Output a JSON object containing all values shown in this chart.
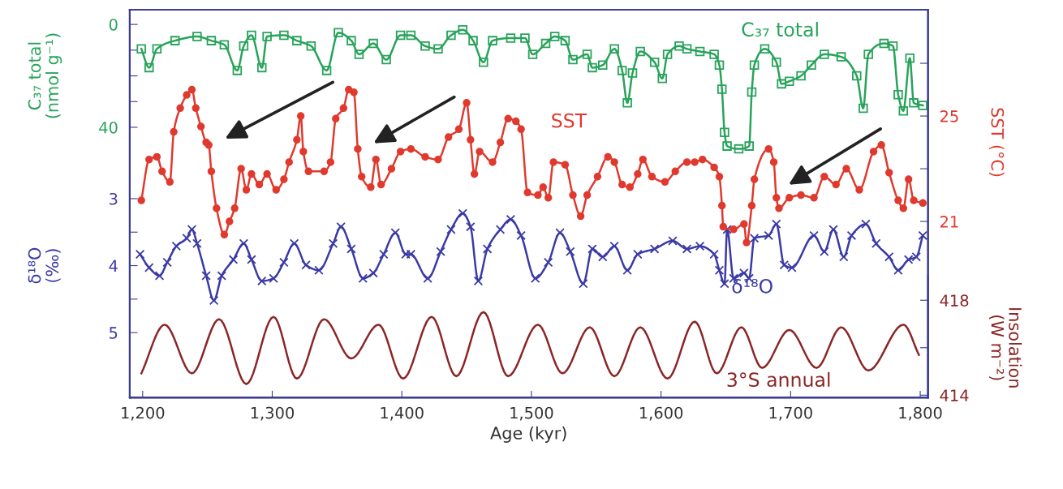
{
  "chart_data": [
    {
      "type": "line",
      "xlabel": "Age (kyr)",
      "ylabel": "δ¹⁸O\n(‰)",
      "y2label": "SST (°C)",
      "y3label": "C₃₇ total\n(nmol g⁻¹)",
      "xlim": [
        1190,
        1806
      ],
      "xticks": [
        {
          "value": 1200,
          "label": "1,200"
        },
        {
          "value": 1300,
          "label": "1,300"
        },
        {
          "value": 1400,
          "label": "1,400"
        },
        {
          "value": 1500,
          "label": "1,500"
        },
        {
          "value": 1600,
          "label": "1,600"
        },
        {
          "value": 1700,
          "label": "1,700"
        },
        {
          "value": 1800,
          "label": "1,800"
        }
      ],
      "ylim": [
        5.97,
        0.18
      ],
      "yticks": [
        3,
        {
          "value": 3.5,
          "label": null
        },
        4,
        {
          "value": 4.5,
          "label": null
        },
        5
      ],
      "y2lim": [
        14.32,
        29.03
      ],
      "y2ticks": [
        {
          "value": 27,
          "label": null
        },
        25,
        {
          "value": 23,
          "label": null
        },
        21
      ],
      "y3lim": [
        145.1,
        -5.7
      ],
      "y3ticks": [
        0,
        {
          "value": 10,
          "label": null
        },
        {
          "value": 20,
          "label": null
        },
        {
          "value": 30,
          "label": null
        },
        40
      ],
      "series": [
        {
          "name": "C₃₇ total",
          "axis": "y3",
          "color": "#27a35a",
          "marker": "square",
          "x": [
            1199,
            1205,
            1211,
            1225,
            1242,
            1253,
            1263,
            1273,
            1278,
            1284,
            1292,
            1296,
            1309,
            1319,
            1330,
            1342,
            1351,
            1361,
            1367,
            1378,
            1388,
            1399,
            1407,
            1418,
            1428,
            1438,
            1447,
            1455,
            1463,
            1470,
            1484,
            1495,
            1501,
            1511,
            1518,
            1526,
            1532,
            1543,
            1547,
            1555,
            1564,
            1570,
            1574,
            1578,
            1584,
            1595,
            1601,
            1605,
            1614,
            1620,
            1630,
            1641,
            1645,
            1647,
            1649,
            1651,
            1660,
            1668,
            1670,
            1672,
            1680,
            1689,
            1693,
            1699,
            1708,
            1716,
            1726,
            1739,
            1751,
            1756,
            1760,
            1772,
            1779,
            1783,
            1787,
            1792,
            1795,
            1802
          ],
          "values": [
            9.5,
            16.8,
            9.5,
            6.3,
            4.7,
            6.3,
            7.9,
            17.9,
            8.4,
            4.2,
            16.8,
            4.7,
            4.2,
            6.3,
            8.4,
            17.9,
            3.2,
            6.3,
            11.6,
            7.4,
            13.7,
            4.2,
            4.2,
            8.4,
            9.5,
            4.2,
            2.1,
            6.3,
            14.7,
            6.3,
            5.3,
            5.3,
            11.6,
            7.4,
            4.7,
            6.3,
            13.7,
            11.6,
            16.8,
            15.8,
            9.5,
            17.9,
            30.5,
            18.9,
            10.5,
            14.7,
            21,
            11.6,
            8.4,
            9.5,
            10.5,
            11.6,
            15.8,
            25.2,
            42,
            47.3,
            48.4,
            47.3,
            26.3,
            15.8,
            9.5,
            14.7,
            23.1,
            22.1,
            20,
            15.8,
            11.6,
            12.6,
            20,
            32.6,
            11.6,
            7.4,
            8.4,
            27.3,
            33.6,
            13.1,
            30.5,
            31.5
          ]
        },
        {
          "name": "SST",
          "axis": "y2",
          "color": "#e0392e",
          "marker": "circle",
          "x": [
            1199,
            1205,
            1211,
            1215,
            1221,
            1224,
            1229,
            1234,
            1238,
            1241,
            1245,
            1249,
            1251,
            1253,
            1257,
            1263,
            1267,
            1271,
            1276,
            1280,
            1284,
            1290,
            1296,
            1303,
            1309,
            1313,
            1319,
            1322,
            1324,
            1328,
            1340,
            1345,
            1349,
            1355,
            1359,
            1363,
            1366,
            1369,
            1376,
            1380,
            1384,
            1392,
            1399,
            1407,
            1418,
            1428,
            1436,
            1444,
            1450,
            1453,
            1456,
            1460,
            1470,
            1476,
            1482,
            1488,
            1492,
            1497,
            1505,
            1509,
            1513,
            1517,
            1526,
            1532,
            1538,
            1543,
            1551,
            1559,
            1564,
            1570,
            1576,
            1582,
            1586,
            1593,
            1603,
            1611,
            1620,
            1626,
            1632,
            1641,
            1645,
            1647,
            1648,
            1656,
            1664,
            1666,
            1670,
            1672,
            1683,
            1687,
            1689,
            1691,
            1699,
            1708,
            1718,
            1726,
            1735,
            1743,
            1753,
            1764,
            1770,
            1776,
            1783,
            1787,
            1791,
            1795,
            1802
          ],
          "values": [
            21.8,
            23.35,
            23.45,
            22.9,
            22.5,
            24.4,
            25.3,
            25.8,
            26.0,
            25.3,
            24.6,
            24.0,
            23.9,
            22.9,
            21.5,
            20.5,
            21.0,
            21.5,
            23.0,
            22.2,
            22.8,
            22.4,
            22.8,
            22.2,
            22.6,
            23.25,
            24.1,
            25.0,
            23.65,
            22.9,
            22.9,
            23.25,
            24.9,
            25.3,
            26.0,
            25.9,
            23.75,
            22.7,
            22.3,
            23.35,
            22.4,
            23.0,
            23.65,
            23.75,
            23.45,
            23.35,
            24.2,
            24.5,
            25.5,
            24.1,
            22.8,
            23.65,
            23.25,
            24.0,
            24.9,
            24.8,
            24.5,
            22.1,
            22.0,
            22.3,
            21.9,
            23.25,
            23.15,
            22.0,
            21.2,
            22.0,
            22.7,
            23.45,
            23.25,
            22.4,
            22.3,
            22.8,
            23.35,
            22.7,
            22.5,
            22.9,
            23.25,
            23.25,
            23.35,
            23.05,
            22.7,
            21.6,
            20.8,
            20.7,
            20.9,
            20.2,
            21.6,
            22.6,
            23.75,
            23.25,
            21.9,
            21.5,
            21.9,
            22.0,
            21.9,
            22.7,
            22.4,
            23.0,
            22.2,
            23.65,
            23.9,
            22.85,
            21.8,
            21.5,
            22.6,
            21.8,
            21.7
          ]
        },
        {
          "name": "δ¹⁸O",
          "axis": "y",
          "color": "#3a3aa6",
          "marker": "cross",
          "x": [
            1198,
            1205,
            1213,
            1219,
            1226,
            1234,
            1238,
            1242,
            1249,
            1255,
            1261,
            1270,
            1278,
            1284,
            1292,
            1301,
            1309,
            1317,
            1326,
            1336,
            1347,
            1353,
            1361,
            1370,
            1378,
            1386,
            1395,
            1403,
            1407,
            1420,
            1430,
            1438,
            1447,
            1453,
            1459,
            1466,
            1476,
            1484,
            1492,
            1503,
            1513,
            1522,
            1530,
            1540,
            1547,
            1555,
            1564,
            1574,
            1582,
            1595,
            1609,
            1620,
            1630,
            1641,
            1645,
            1649,
            1651,
            1656,
            1664,
            1668,
            1672,
            1683,
            1689,
            1695,
            1701,
            1718,
            1726,
            1733,
            1741,
            1747,
            1758,
            1766,
            1776,
            1783,
            1791,
            1797,
            1802
          ],
          "values": [
            3.83,
            4.03,
            4.15,
            3.95,
            3.71,
            3.59,
            3.46,
            3.67,
            4.15,
            4.52,
            4.15,
            3.91,
            3.67,
            3.91,
            4.23,
            4.19,
            3.95,
            3.67,
            3.99,
            4.07,
            3.67,
            3.42,
            3.75,
            4.19,
            4.11,
            3.83,
            3.51,
            3.83,
            3.83,
            4.19,
            3.79,
            3.46,
            3.22,
            3.42,
            4.23,
            3.75,
            3.46,
            3.31,
            3.55,
            4.19,
            3.95,
            3.51,
            3.79,
            4.27,
            3.75,
            3.87,
            3.71,
            4.07,
            3.83,
            3.75,
            3.63,
            3.75,
            3.71,
            3.83,
            4.07,
            4.27,
            3.46,
            4.19,
            4.11,
            4.19,
            3.59,
            3.55,
            3.38,
            3.99,
            4.03,
            3.55,
            3.79,
            3.46,
            3.87,
            3.55,
            3.38,
            3.67,
            3.87,
            4.07,
            3.91,
            3.87,
            3.55
          ]
        }
      ]
    },
    {
      "type": "line",
      "y2label": "Insolation\n(W m⁻²)",
      "tick_labels": "y",
      "xlim": [
        1190,
        1806
      ],
      "y2lim": [
        413.9,
        419.03
      ],
      "y2ticks": [
        418,
        {
          "value": 416,
          "label": null
        },
        414
      ],
      "series": [
        {
          "name": "3°S annual",
          "axis": "y2",
          "color": "#8b2626",
          "marker": "none",
          "x": [
            1199,
            1217,
            1238,
            1259,
            1280,
            1301,
            1319,
            1340,
            1361,
            1382,
            1401,
            1423,
            1442,
            1463,
            1482,
            1505,
            1524,
            1545,
            1564,
            1584,
            1605,
            1626,
            1643,
            1662,
            1678,
            1699,
            1720,
            1739,
            1760,
            1787,
            1799
          ],
          "values": [
            414.92,
            416.97,
            414.92,
            417.2,
            414.47,
            417.3,
            414.7,
            417.2,
            415.55,
            416.97,
            414.7,
            417.3,
            414.8,
            417.5,
            414.8,
            416.97,
            414.92,
            416.86,
            414.8,
            416.86,
            414.7,
            417.1,
            414.92,
            416.86,
            415.15,
            416.75,
            415.15,
            416.86,
            415.04,
            416.97,
            415.7
          ]
        }
      ]
    }
  ]
}
